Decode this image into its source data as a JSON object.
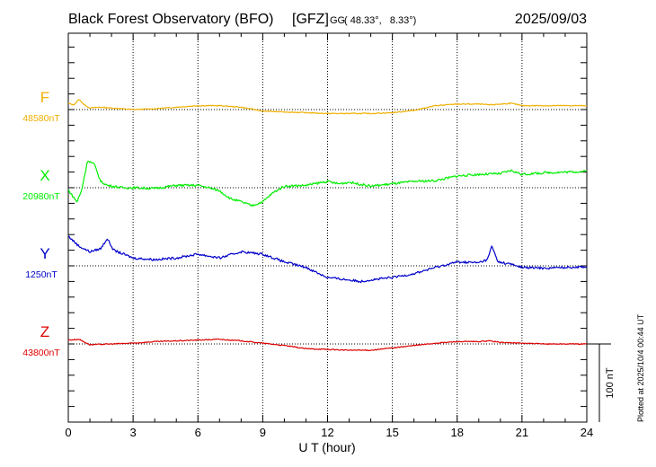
{
  "chart_data": {
    "type": "line",
    "title": "Black Forest Observatory (BFO)",
    "institution": "[GFZ]",
    "coord_system": "GG",
    "coordinates": "( 48.33°,   8.33°)",
    "date": "2025/09/03",
    "xlabel": "U T (hour)",
    "xlim": [
      0,
      24
    ],
    "x_ticks": [
      "0",
      "3",
      "6",
      "9",
      "12",
      "15",
      "18",
      "21",
      "24"
    ],
    "scale_bar_label": "100 nT",
    "scale_bar_nT": 100,
    "plotted_note": "Plotted at 2025/10/4 00:44 UT",
    "series": [
      {
        "name": "F",
        "baseline_label": "48580nT",
        "color": "#f0b000",
        "offset_nT": [
          [
            0,
            8
          ],
          [
            0.25,
            6
          ],
          [
            0.5,
            13
          ],
          [
            0.75,
            6
          ],
          [
            1,
            2
          ],
          [
            1.5,
            3
          ],
          [
            2,
            2
          ],
          [
            3,
            0
          ],
          [
            4,
            1
          ],
          [
            5,
            3
          ],
          [
            6,
            5
          ],
          [
            7,
            5
          ],
          [
            8,
            3
          ],
          [
            9,
            -2
          ],
          [
            10,
            -3
          ],
          [
            11,
            -4
          ],
          [
            12,
            -5
          ],
          [
            13,
            -5
          ],
          [
            14,
            -5
          ],
          [
            15,
            -4
          ],
          [
            16,
            -1
          ],
          [
            17,
            5
          ],
          [
            18,
            7
          ],
          [
            19,
            7
          ],
          [
            19.5,
            6
          ],
          [
            20,
            7
          ],
          [
            20.5,
            8
          ],
          [
            21,
            5
          ],
          [
            22,
            5
          ],
          [
            23,
            5
          ],
          [
            24,
            5
          ]
        ]
      },
      {
        "name": "X",
        "baseline_label": "20980nT",
        "color": "#00ee00",
        "offset_nT": [
          [
            0,
            -3
          ],
          [
            0.4,
            -18
          ],
          [
            0.6,
            -5
          ],
          [
            0.9,
            35
          ],
          [
            1.2,
            30
          ],
          [
            1.5,
            8
          ],
          [
            1.8,
            3
          ],
          [
            2.5,
            0
          ],
          [
            3,
            0
          ],
          [
            4,
            -1
          ],
          [
            5,
            3
          ],
          [
            6,
            3
          ],
          [
            6.5,
            0
          ],
          [
            7,
            -4
          ],
          [
            7.5,
            -14
          ],
          [
            8,
            -18
          ],
          [
            8.5,
            -23
          ],
          [
            9,
            -18
          ],
          [
            9.5,
            -6
          ],
          [
            10,
            2
          ],
          [
            11,
            3
          ],
          [
            12,
            8
          ],
          [
            12.5,
            5
          ],
          [
            13,
            7
          ],
          [
            14,
            2
          ],
          [
            15,
            5
          ],
          [
            16,
            8
          ],
          [
            17,
            9
          ],
          [
            18,
            15
          ],
          [
            19,
            17
          ],
          [
            20,
            18
          ],
          [
            20.5,
            22
          ],
          [
            21,
            17
          ],
          [
            22,
            19
          ],
          [
            23,
            20
          ],
          [
            24,
            21
          ]
        ]
      },
      {
        "name": "Y",
        "baseline_label": "1250nT",
        "color": "#0000cc",
        "offset_nT": [
          [
            0,
            38
          ],
          [
            0.5,
            25
          ],
          [
            1,
            18
          ],
          [
            1.5,
            22
          ],
          [
            1.8,
            35
          ],
          [
            2.1,
            20
          ],
          [
            3,
            10
          ],
          [
            4,
            8
          ],
          [
            5,
            10
          ],
          [
            6,
            15
          ],
          [
            7,
            10
          ],
          [
            8,
            18
          ],
          [
            9,
            15
          ],
          [
            10,
            5
          ],
          [
            11,
            -2
          ],
          [
            12,
            -15
          ],
          [
            13,
            -18
          ],
          [
            13.5,
            -20
          ],
          [
            14,
            -18
          ],
          [
            15,
            -15
          ],
          [
            16,
            -10
          ],
          [
            17,
            -2
          ],
          [
            18,
            5
          ],
          [
            19,
            4
          ],
          [
            19.4,
            8
          ],
          [
            19.6,
            25
          ],
          [
            19.9,
            5
          ],
          [
            20.5,
            2
          ],
          [
            21,
            -2
          ],
          [
            22,
            -3
          ],
          [
            23,
            -2
          ],
          [
            24,
            -1
          ]
        ]
      },
      {
        "name": "Z",
        "baseline_label": "43800nT",
        "color": "#dd0000",
        "offset_nT": [
          [
            0,
            5
          ],
          [
            0.5,
            6
          ],
          [
            1,
            -1
          ],
          [
            2,
            0
          ],
          [
            3,
            1
          ],
          [
            4,
            3
          ],
          [
            5,
            4
          ],
          [
            6,
            5
          ],
          [
            7,
            6
          ],
          [
            8,
            4
          ],
          [
            9,
            1
          ],
          [
            10,
            -2
          ],
          [
            11,
            -6
          ],
          [
            12,
            -7
          ],
          [
            13,
            -8
          ],
          [
            14,
            -8
          ],
          [
            15,
            -5
          ],
          [
            16,
            -2
          ],
          [
            17,
            1
          ],
          [
            18,
            3
          ],
          [
            19,
            3
          ],
          [
            19.5,
            4
          ],
          [
            20,
            2
          ],
          [
            21,
            1
          ],
          [
            22,
            0
          ],
          [
            23,
            0
          ],
          [
            24,
            0
          ]
        ]
      }
    ]
  }
}
